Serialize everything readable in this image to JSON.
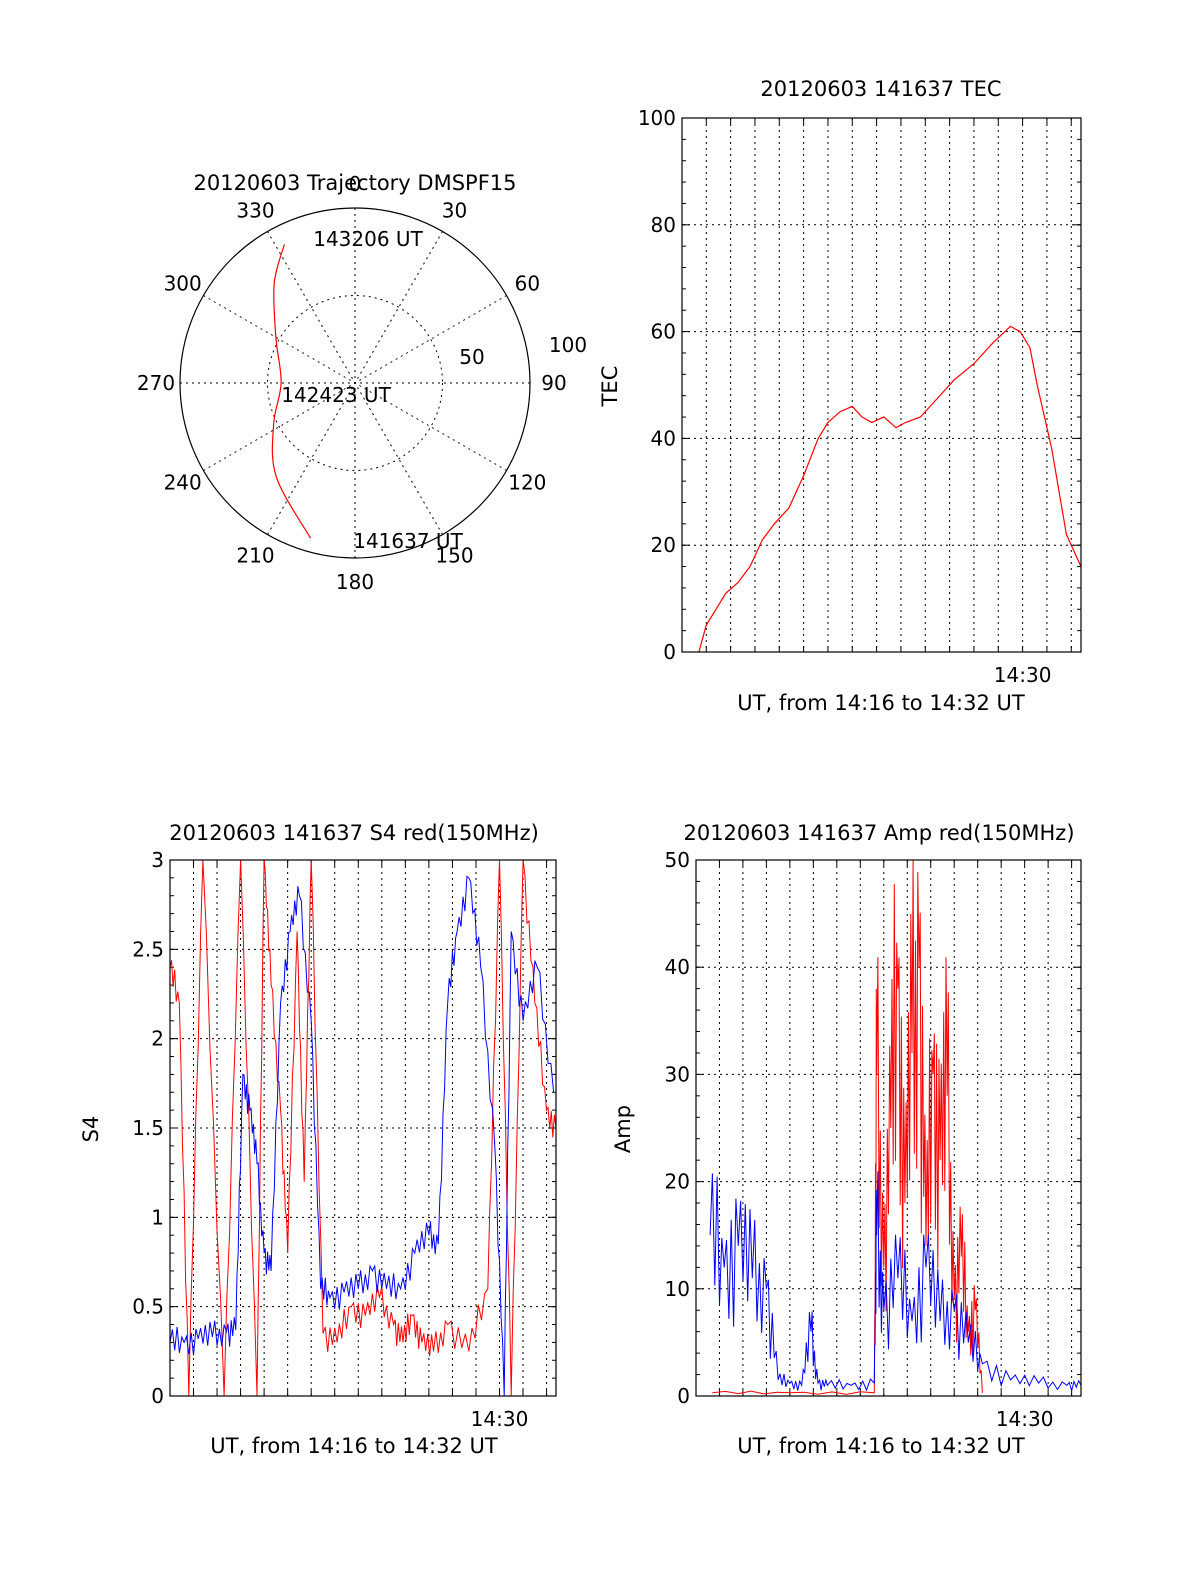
{
  "chart_data": [
    {
      "type": "polar",
      "title": "20120603 Trajectory DMSPF15",
      "azimuth_labels": [
        "0",
        "30",
        "60",
        "90",
        "120",
        "150",
        "180",
        "210",
        "240",
        "270",
        "300",
        "330"
      ],
      "radius_labels": [
        "50",
        "100"
      ],
      "time_labels": [
        "143206 UT",
        "142423 UT",
        "141637 UT"
      ],
      "trajectory": {
        "color": "#ff0000",
        "points": [
          {
            "az": 333,
            "el": 10
          },
          {
            "az": 321,
            "el": 24
          },
          {
            "az": 300,
            "el": 43
          },
          {
            "az": 270,
            "el": 52
          },
          {
            "az": 243,
            "el": 43
          },
          {
            "az": 220,
            "el": 27
          },
          {
            "az": 196,
            "el": 7
          }
        ]
      },
      "colors": {
        "trajectory": "#ff0000"
      }
    },
    {
      "type": "line",
      "title": "20120603 141637 TEC",
      "xlabel": "UT, from 14:16 to 14:32 UT",
      "ylabel": "TEC",
      "xlim": [
        14.2667,
        14.54
      ],
      "ylim": [
        0,
        100
      ],
      "yticks": [
        "0",
        "20",
        "40",
        "60",
        "80",
        "100"
      ],
      "xtick_label": "14:30",
      "xtick_value": 14.5,
      "grid": true,
      "series": [
        {
          "color": "#ff0000",
          "x": [
            14.2783,
            14.2833,
            14.29,
            14.2967,
            14.305,
            14.3133,
            14.3217,
            14.33,
            14.34,
            14.35,
            14.36,
            14.3667,
            14.375,
            14.3833,
            14.39,
            14.3967,
            14.405,
            14.4133,
            14.42,
            14.43,
            14.44,
            14.4533,
            14.4667,
            14.48,
            14.4917,
            14.4983,
            14.505,
            14.51,
            14.515,
            14.52,
            14.525,
            14.53,
            14.54
          ],
          "y": [
            0,
            5,
            8,
            11,
            13,
            16,
            21,
            24,
            27,
            33,
            40,
            43,
            45,
            46,
            44,
            43,
            44,
            42,
            43,
            44,
            47,
            51,
            54,
            58,
            61,
            60,
            57,
            50,
            44,
            38,
            30,
            22,
            16
          ]
        }
      ]
    },
    {
      "type": "line",
      "title": "20120603 141637 S4 red(150MHz)",
      "xlabel": "UT, from 14:16 to 14:32 UT",
      "ylabel": "S4",
      "xlim": [
        14.2667,
        14.54
      ],
      "ylim": [
        0,
        3
      ],
      "yticks": [
        "0",
        "0.5",
        "1",
        "1.5",
        "2",
        "2.5",
        "3"
      ],
      "xtick_label": "14:30",
      "xtick_value": 14.5,
      "grid": true,
      "series": [
        {
          "color": "#ff0000",
          "x": [
            14.2667,
            14.2733,
            14.28,
            14.29,
            14.305,
            14.3167,
            14.3283,
            14.3333,
            14.3383,
            14.345,
            14.35,
            14.3567,
            14.3617,
            14.3667,
            14.375,
            14.385,
            14.395,
            14.405,
            14.415,
            14.425,
            14.4317,
            14.4383,
            14.445,
            14.4533,
            14.4633,
            14.4783,
            14.4917,
            14.5,
            14.5083,
            14.5167,
            14.525,
            14.5333,
            14.54
          ],
          "y": [
            2.4,
            2.2,
            0,
            3,
            0,
            3,
            0,
            3,
            2.3,
            1.6,
            0.8,
            2.6,
            1.2,
            3,
            0.35,
            0.3,
            0.5,
            0.45,
            0.55,
            0.4,
            0.3,
            0.45,
            0.3,
            0.25,
            0.4,
            0.25,
            0.6,
            3,
            0,
            3,
            2.2,
            1.6,
            1.5
          ]
        },
        {
          "color": "#0000ff",
          "x": [
            14.2667,
            14.2767,
            14.2867,
            14.2967,
            14.3067,
            14.3133,
            14.3183,
            14.3233,
            14.3283,
            14.3333,
            14.3383,
            14.345,
            14.3517,
            14.3583,
            14.3667,
            14.3733,
            14.38,
            14.39,
            14.4,
            14.41,
            14.42,
            14.43,
            14.44,
            14.45,
            14.4567,
            14.4633,
            14.47,
            14.4783,
            14.4867,
            14.4967,
            14.5033,
            14.5083,
            14.5167,
            14.5267,
            14.5383
          ],
          "y": [
            0.3,
            0.3,
            0.32,
            0.33,
            0.36,
            0.37,
            1.8,
            1.6,
            1.3,
            0.8,
            0.7,
            2.2,
            2.6,
            2.8,
            2.1,
            0.6,
            0.55,
            0.58,
            0.6,
            0.7,
            0.6,
            0.6,
            0.8,
            0.9,
            0.85,
            2.2,
            2.6,
            2.9,
            2.4,
            1.4,
            0,
            2.6,
            2.1,
            2.4,
            1.7
          ]
        }
      ]
    },
    {
      "type": "line",
      "title": "20120603 141637 Amp red(150MHz)",
      "xlabel": "UT, from 14:16 to 14:32 UT",
      "ylabel": "Amp",
      "xlim": [
        14.2667,
        14.54
      ],
      "ylim": [
        0,
        50
      ],
      "yticks": [
        "0",
        "10",
        "20",
        "30",
        "40",
        "50"
      ],
      "xtick_label": "14:30",
      "xtick_value": 14.5,
      "grid": true,
      "series": [
        {
          "color": "#ff0000",
          "x": [
            14.2783,
            14.3333,
            14.3933,
            14.395,
            14.4,
            14.405,
            14.41,
            14.415,
            14.42,
            14.425,
            14.43,
            14.435,
            14.44,
            14.445,
            14.45,
            14.455,
            14.46,
            14.465,
            14.47
          ],
          "y": [
            0.3,
            0.3,
            0.3,
            30,
            12,
            25,
            38,
            18,
            32,
            40,
            14,
            30,
            22,
            28,
            9,
            13,
            6,
            8,
            0.3
          ]
        },
        {
          "color": "#0000ff",
          "x": [
            14.2767,
            14.2867,
            14.2967,
            14.3067,
            14.3167,
            14.325,
            14.3333,
            14.3417,
            14.3483,
            14.3533,
            14.36,
            14.3767,
            14.3933,
            14.395,
            14.4,
            14.41,
            14.42,
            14.43,
            14.44,
            14.45,
            14.46,
            14.47,
            14.49,
            14.51,
            14.53,
            14.54
          ],
          "y": [
            15,
            12,
            14,
            11,
            10,
            1.5,
            1.2,
            1.0,
            6,
            1.2,
            1.0,
            1.0,
            1.2,
            15,
            8,
            11,
            7,
            12,
            7,
            8,
            5,
            3,
            1.5,
            1.2,
            1.0,
            1.0
          ]
        }
      ]
    }
  ]
}
